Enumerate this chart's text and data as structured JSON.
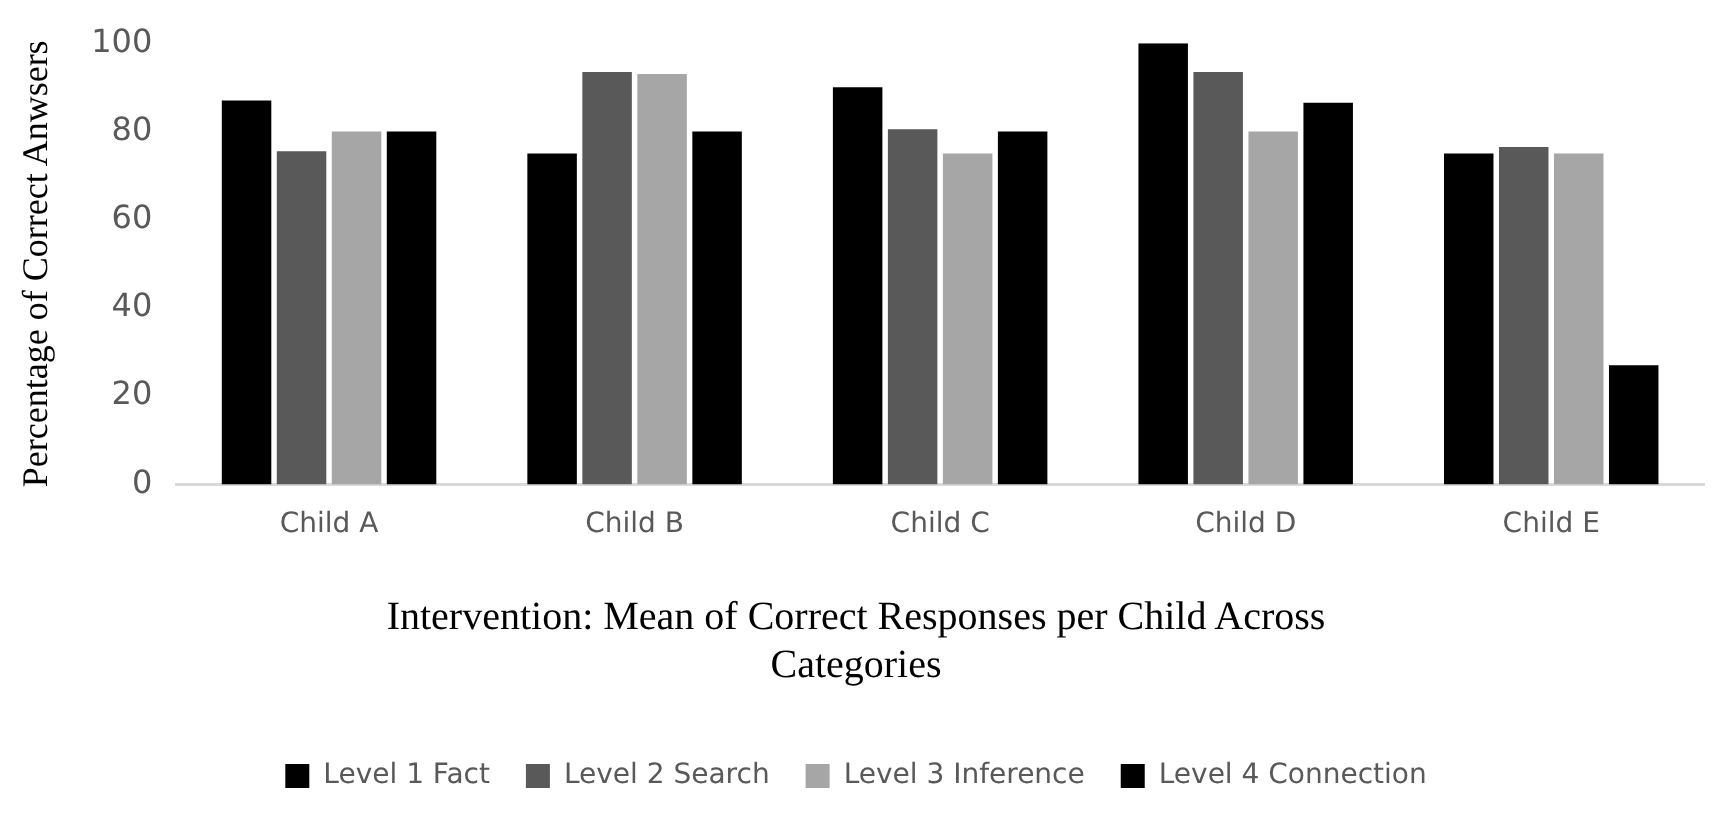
{
  "chart_data": {
    "type": "bar",
    "title": "Intervention: Mean of Correct Responses per Child Across Categories",
    "ylabel": "Percentage of Correct Anwsers",
    "categories": [
      "Child A",
      "Child B",
      "Child C",
      "Child D",
      "Child E"
    ],
    "series": [
      {
        "name": "Level 1 Fact",
        "color": "#000000",
        "values": [
          87,
          75,
          90,
          100,
          75
        ]
      },
      {
        "name": "Level 2 Search",
        "color": "#595959",
        "values": [
          75.5,
          93.5,
          80.5,
          93.5,
          76.5
        ]
      },
      {
        "name": "Level 3 Inference",
        "color": "#a6a6a6",
        "values": [
          80,
          93,
          75,
          80,
          75
        ]
      },
      {
        "name": "Level 4 Connection",
        "color": "#000000",
        "values": [
          80,
          80,
          80,
          86.5,
          27
        ]
      }
    ],
    "ylim": [
      0,
      100
    ],
    "yticks": [
      0,
      20,
      40,
      60,
      80,
      100
    ],
    "grid": false,
    "legend": "bottom"
  }
}
